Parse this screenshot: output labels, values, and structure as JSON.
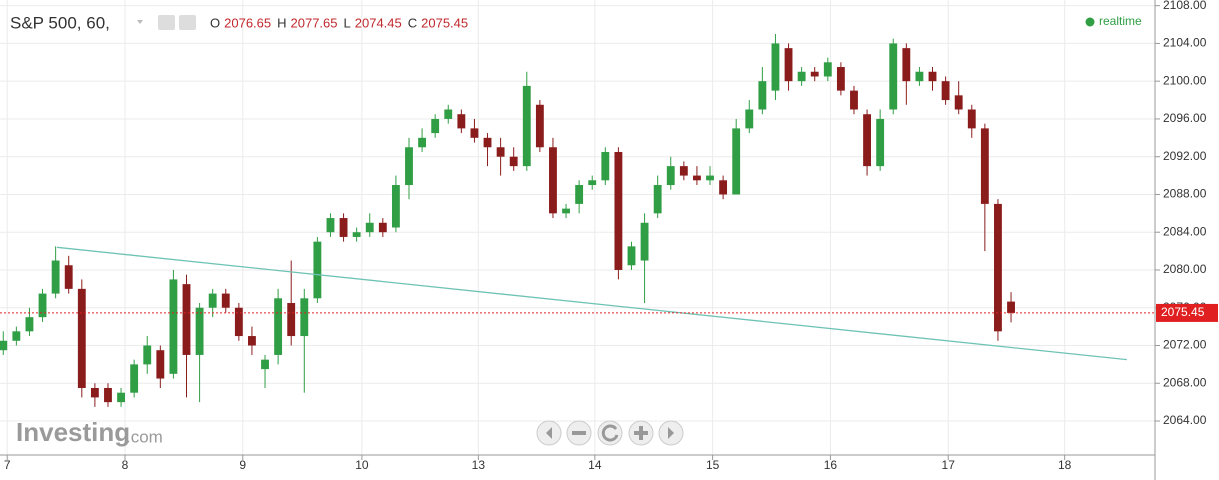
{
  "chart_data": {
    "type": "candlestick",
    "title": "S&P 500, 60,",
    "ohlc_labels": [
      "O",
      "H",
      "L",
      "C"
    ],
    "status": "realtime",
    "watermark": "Investing",
    "watermark_suffix": ".com",
    "up_color": "#2f9e44",
    "down_color": "#8b1c1c",
    "last_price_color": "#e02020",
    "trendline_color": "#6fc3b5",
    "grid": true,
    "xlim": [
      -0.25,
      88
    ],
    "xticks": [
      {
        "value": 0.3,
        "label": "7"
      },
      {
        "value": 9.3,
        "label": "8"
      },
      {
        "value": 18.3,
        "label": "9"
      },
      {
        "value": 27.4,
        "label": "10"
      },
      {
        "value": 36.3,
        "label": "13"
      },
      {
        "value": 45.2,
        "label": "14"
      },
      {
        "value": 54.2,
        "label": "15"
      },
      {
        "value": 63.2,
        "label": "16"
      },
      {
        "value": 72.2,
        "label": "17"
      },
      {
        "value": 81.1,
        "label": "18"
      }
    ],
    "ylim": [
      2060.4,
      2108.6
    ],
    "yticks": [
      {
        "value": 2064,
        "label": "2064.00"
      },
      {
        "value": 2068,
        "label": "2068.00"
      },
      {
        "value": 2072,
        "label": "2072.00"
      },
      {
        "value": 2076,
        "label": "2076.00"
      },
      {
        "value": 2080,
        "label": "2080.00"
      },
      {
        "value": 2084,
        "label": "2084.00"
      },
      {
        "value": 2088,
        "label": "2088.00"
      },
      {
        "value": 2092,
        "label": "2092.00"
      },
      {
        "value": 2096,
        "label": "2096.00"
      },
      {
        "value": 2100,
        "label": "2100.00"
      },
      {
        "value": 2104,
        "label": "2104.00"
      },
      {
        "value": 2108,
        "label": "2108.00"
      }
    ],
    "trendline": {
      "x": [
        4.1,
        85.85
      ],
      "y": [
        2082.4,
        2070.5
      ]
    },
    "ohlc": [
      [
        2071.5,
        2073.5,
        2071,
        2072.5
      ],
      [
        2072.5,
        2074,
        2072,
        2073.5
      ],
      [
        2073.5,
        2076,
        2073,
        2075
      ],
      [
        2075,
        2078,
        2074.5,
        2077.5
      ],
      [
        2077.5,
        2082.5,
        2077,
        2081
      ],
      [
        2080.5,
        2081.5,
        2077.5,
        2078
      ],
      [
        2078,
        2079,
        2066.5,
        2067.5
      ],
      [
        2067.5,
        2068,
        2065.5,
        2066.5
      ],
      [
        2067.5,
        2068,
        2065.5,
        2066
      ],
      [
        2066,
        2067.5,
        2065.5,
        2067
      ],
      [
        2067,
        2070.5,
        2066.5,
        2070
      ],
      [
        2070,
        2073,
        2069,
        2072
      ],
      [
        2071.5,
        2072,
        2067.5,
        2068.5
      ],
      [
        2069,
        2080,
        2068.5,
        2079
      ],
      [
        2078.5,
        2079.5,
        2066.5,
        2071
      ],
      [
        2071,
        2076.5,
        2066,
        2076
      ],
      [
        2076,
        2078,
        2075,
        2077.5
      ],
      [
        2077.5,
        2078,
        2075.5,
        2076
      ],
      [
        2076,
        2076.5,
        2072.5,
        2073
      ],
      [
        2073,
        2074,
        2071,
        2072
      ],
      [
        2069.5,
        2071,
        2067.5,
        2070.5
      ],
      [
        2071,
        2078,
        2070,
        2077
      ],
      [
        2076.5,
        2081,
        2072,
        2073
      ],
      [
        2073,
        2078,
        2067,
        2077
      ],
      [
        2077,
        2083.5,
        2076.5,
        2083
      ],
      [
        2084,
        2086,
        2083.5,
        2085.5
      ],
      [
        2085.5,
        2086,
        2083,
        2083.5
      ],
      [
        2083.5,
        2084.5,
        2083,
        2084
      ],
      [
        2084,
        2086,
        2083.5,
        2085
      ],
      [
        2085,
        2085.5,
        2083.5,
        2084
      ],
      [
        2084.5,
        2090,
        2084,
        2089
      ],
      [
        2089,
        2094,
        2087.5,
        2093
      ],
      [
        2093,
        2095,
        2092.5,
        2094
      ],
      [
        2094.5,
        2096.5,
        2094,
        2096
      ],
      [
        2096,
        2097.5,
        2095.5,
        2097
      ],
      [
        2096.5,
        2097,
        2094.5,
        2095
      ],
      [
        2095,
        2096,
        2093.5,
        2094
      ],
      [
        2094,
        2094.5,
        2091,
        2093
      ],
      [
        2093,
        2094,
        2090,
        2092
      ],
      [
        2092,
        2093,
        2090.5,
        2091
      ],
      [
        2091,
        2101,
        2090.5,
        2099.5
      ],
      [
        2097.5,
        2098,
        2092.5,
        2093
      ],
      [
        2093,
        2094,
        2085.5,
        2086
      ],
      [
        2086,
        2087,
        2085.5,
        2086.5
      ],
      [
        2087,
        2089.5,
        2086,
        2089
      ],
      [
        2089,
        2090,
        2088.5,
        2089.5
      ],
      [
        2089.5,
        2093,
        2089,
        2092.5
      ],
      [
        2092.5,
        2093,
        2079,
        2080
      ],
      [
        2080.5,
        2083,
        2080,
        2082.5
      ],
      [
        2081,
        2086,
        2076.5,
        2085
      ],
      [
        2086,
        2090,
        2085.5,
        2089
      ],
      [
        2089,
        2092,
        2088.5,
        2091
      ],
      [
        2091,
        2091.5,
        2089.5,
        2090
      ],
      [
        2090,
        2091,
        2089,
        2089.5
      ],
      [
        2089.5,
        2091,
        2089,
        2090
      ],
      [
        2089.5,
        2090,
        2087.5,
        2088
      ],
      [
        2088,
        2096,
        2088,
        2095
      ],
      [
        2095,
        2098,
        2094.5,
        2097
      ],
      [
        2097,
        2101.5,
        2096.5,
        2100
      ],
      [
        2099,
        2105,
        2098,
        2104
      ],
      [
        2103.5,
        2104,
        2099,
        2100
      ],
      [
        2100,
        2101.5,
        2099.5,
        2101
      ],
      [
        2101,
        2101.5,
        2100,
        2100.5
      ],
      [
        2100.5,
        2102.5,
        2100,
        2102
      ],
      [
        2101.5,
        2102,
        2098.5,
        2099
      ],
      [
        2099,
        2099.5,
        2096.5,
        2097
      ],
      [
        2096.5,
        2097,
        2090,
        2091
      ],
      [
        2091,
        2097,
        2090.5,
        2096
      ],
      [
        2097,
        2104.5,
        2096.5,
        2104
      ],
      [
        2103.5,
        2104,
        2097.5,
        2100
      ],
      [
        2100,
        2101.5,
        2099.5,
        2101
      ],
      [
        2101,
        2101.5,
        2099,
        2100
      ],
      [
        2100,
        2100.5,
        2097.5,
        2098
      ],
      [
        2098.5,
        2100,
        2096.5,
        2097
      ],
      [
        2097,
        2097.5,
        2094,
        2095
      ],
      [
        2095,
        2095.5,
        2082,
        2087
      ],
      [
        2087,
        2087.5,
        2072.5,
        2073.5
      ],
      [
        2076.65,
        2077.65,
        2074.45,
        2075.45
      ]
    ]
  }
}
